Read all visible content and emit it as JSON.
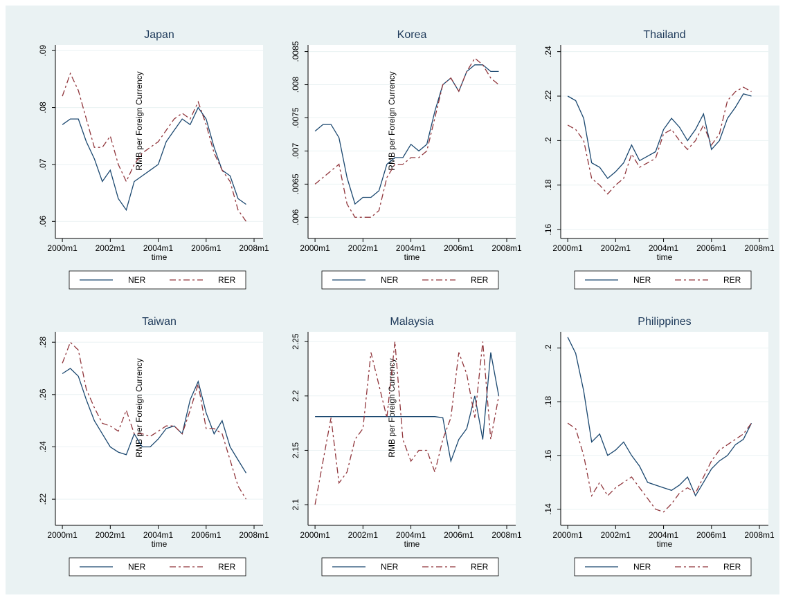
{
  "chart_data": [
    {
      "type": "line",
      "title": "Japan",
      "y_axis_label": "RMB per Foreign Currency",
      "x_axis_label": "time",
      "x": [
        480,
        484,
        488,
        492,
        496,
        500,
        504,
        508,
        512,
        516,
        520,
        524,
        528,
        532,
        536,
        540,
        544,
        548,
        552,
        556,
        560,
        564,
        568,
        572
      ],
      "xlim": [
        476.5,
        580.5
      ],
      "xticks": [
        {
          "value": 480,
          "label": "2000m1"
        },
        {
          "value": 504,
          "label": "2002m1"
        },
        {
          "value": 528,
          "label": "2004m1"
        },
        {
          "value": 552,
          "label": "2006m1"
        },
        {
          "value": 576,
          "label": "2008m1"
        }
      ],
      "ylim": [
        0.057,
        0.091
      ],
      "yticks": [
        {
          "value": 0.06,
          "label": ".06"
        },
        {
          "value": 0.07,
          "label": ".07"
        },
        {
          "value": 0.08,
          "label": ".08"
        },
        {
          "value": 0.09,
          "label": ".09"
        }
      ],
      "grid": true,
      "series": [
        {
          "name": "NER",
          "color": "#1a476f",
          "dash": false,
          "values": [
            0.077,
            0.078,
            0.078,
            0.074,
            0.071,
            0.067,
            0.069,
            0.064,
            0.062,
            0.067,
            0.068,
            0.069,
            0.07,
            0.074,
            0.076,
            0.078,
            0.077,
            0.08,
            0.078,
            0.073,
            0.069,
            0.068,
            0.064,
            0.063
          ]
        },
        {
          "name": "RER",
          "color": "#90353b",
          "dash": true,
          "values": [
            0.082,
            0.086,
            0.083,
            0.078,
            0.073,
            0.073,
            0.075,
            0.07,
            0.067,
            0.07,
            0.072,
            0.073,
            0.074,
            0.076,
            0.078,
            0.079,
            0.078,
            0.081,
            0.077,
            0.072,
            0.069,
            0.067,
            0.062,
            0.06
          ]
        }
      ]
    },
    {
      "type": "line",
      "title": "Korea",
      "y_axis_label": "RMB per Foreign Currency",
      "x_axis_label": "time",
      "x": [
        480,
        484,
        488,
        492,
        496,
        500,
        504,
        508,
        512,
        516,
        520,
        524,
        528,
        532,
        536,
        540,
        544,
        548,
        552,
        556,
        560,
        564,
        568,
        572
      ],
      "xlim": [
        476.5,
        580.5
      ],
      "xticks": [
        {
          "value": 480,
          "label": "2000m1"
        },
        {
          "value": 504,
          "label": "2002m1"
        },
        {
          "value": 528,
          "label": "2004m1"
        },
        {
          "value": 552,
          "label": "2006m1"
        },
        {
          "value": 576,
          "label": "2008m1"
        }
      ],
      "ylim": [
        0.00568,
        0.0086
      ],
      "yticks": [
        {
          "value": 0.006,
          "label": ".006"
        },
        {
          "value": 0.0065,
          "label": ".0065"
        },
        {
          "value": 0.007,
          "label": ".007"
        },
        {
          "value": 0.0075,
          "label": ".0075"
        },
        {
          "value": 0.008,
          "label": ".008"
        },
        {
          "value": 0.0085,
          "label": ".0085"
        }
      ],
      "grid": true,
      "series": [
        {
          "name": "NER",
          "color": "#1a476f",
          "dash": false,
          "values": [
            0.0073,
            0.0074,
            0.0074,
            0.0072,
            0.0066,
            0.0062,
            0.0063,
            0.0063,
            0.0064,
            0.0068,
            0.0069,
            0.0069,
            0.0071,
            0.007,
            0.0071,
            0.0076,
            0.008,
            0.0081,
            0.0079,
            0.0082,
            0.0083,
            0.0083,
            0.0082,
            0.0082
          ]
        },
        {
          "name": "RER",
          "color": "#90353b",
          "dash": true,
          "values": [
            0.0065,
            0.0066,
            0.0067,
            0.0068,
            0.0062,
            0.006,
            0.006,
            0.006,
            0.0061,
            0.0066,
            0.0068,
            0.0068,
            0.0069,
            0.0069,
            0.007,
            0.0075,
            0.008,
            0.0081,
            0.0079,
            0.0082,
            0.0084,
            0.0083,
            0.0081,
            0.008
          ]
        }
      ]
    },
    {
      "type": "line",
      "title": "Thailand",
      "x_axis_label": "time",
      "x": [
        480,
        484,
        488,
        492,
        496,
        500,
        504,
        508,
        512,
        516,
        520,
        524,
        528,
        532,
        536,
        540,
        544,
        548,
        552,
        556,
        560,
        564,
        568,
        572
      ],
      "xlim": [
        476.5,
        580.5
      ],
      "xticks": [
        {
          "value": 480,
          "label": "2000m1"
        },
        {
          "value": 504,
          "label": "2002m1"
        },
        {
          "value": 528,
          "label": "2004m1"
        },
        {
          "value": 552,
          "label": "2006m1"
        },
        {
          "value": 576,
          "label": "2008m1"
        }
      ],
      "ylim": [
        0.156,
        0.243
      ],
      "yticks": [
        {
          "value": 0.16,
          "label": ".16"
        },
        {
          "value": 0.18,
          "label": ".18"
        },
        {
          "value": 0.2,
          "label": ".2"
        },
        {
          "value": 0.22,
          "label": ".22"
        },
        {
          "value": 0.24,
          "label": ".24"
        }
      ],
      "grid": true,
      "series": [
        {
          "name": "NER",
          "color": "#1a476f",
          "dash": false,
          "values": [
            0.22,
            0.218,
            0.21,
            0.19,
            0.188,
            0.183,
            0.186,
            0.19,
            0.198,
            0.191,
            0.193,
            0.195,
            0.205,
            0.21,
            0.206,
            0.2,
            0.205,
            0.212,
            0.196,
            0.2,
            0.21,
            0.215,
            0.221,
            0.22
          ]
        },
        {
          "name": "RER",
          "color": "#90353b",
          "dash": true,
          "values": [
            0.207,
            0.205,
            0.2,
            0.183,
            0.18,
            0.176,
            0.18,
            0.183,
            0.194,
            0.188,
            0.19,
            0.192,
            0.203,
            0.205,
            0.2,
            0.196,
            0.2,
            0.207,
            0.198,
            0.203,
            0.218,
            0.222,
            0.224,
            0.222
          ]
        }
      ]
    },
    {
      "type": "line",
      "title": "Taiwan",
      "y_axis_label": "RMB per Foreign Currency",
      "x_axis_label": "time",
      "x": [
        480,
        484,
        488,
        492,
        496,
        500,
        504,
        508,
        512,
        516,
        520,
        524,
        528,
        532,
        536,
        540,
        544,
        548,
        552,
        556,
        560,
        564,
        568,
        572
      ],
      "xlim": [
        476.5,
        580.5
      ],
      "xticks": [
        {
          "value": 480,
          "label": "2000m1"
        },
        {
          "value": 504,
          "label": "2002m1"
        },
        {
          "value": 528,
          "label": "2004m1"
        },
        {
          "value": 552,
          "label": "2006m1"
        },
        {
          "value": 576,
          "label": "2008m1"
        }
      ],
      "ylim": [
        0.21,
        0.284
      ],
      "yticks": [
        {
          "value": 0.22,
          "label": ".22"
        },
        {
          "value": 0.24,
          "label": ".24"
        },
        {
          "value": 0.26,
          "label": ".26"
        },
        {
          "value": 0.28,
          "label": ".28"
        }
      ],
      "grid": true,
      "series": [
        {
          "name": "NER",
          "color": "#1a476f",
          "dash": false,
          "values": [
            0.268,
            0.27,
            0.267,
            0.258,
            0.25,
            0.245,
            0.24,
            0.238,
            0.237,
            0.245,
            0.24,
            0.24,
            0.243,
            0.247,
            0.248,
            0.245,
            0.258,
            0.265,
            0.253,
            0.245,
            0.25,
            0.24,
            0.235,
            0.23
          ]
        },
        {
          "name": "RER",
          "color": "#90353b",
          "dash": true,
          "values": [
            0.272,
            0.28,
            0.277,
            0.262,
            0.255,
            0.249,
            0.248,
            0.246,
            0.254,
            0.245,
            0.245,
            0.244,
            0.246,
            0.248,
            0.248,
            0.245,
            0.254,
            0.264,
            0.247,
            0.247,
            0.245,
            0.235,
            0.225,
            0.22
          ]
        }
      ]
    },
    {
      "type": "line",
      "title": "Malaysia",
      "y_axis_label": "RMB per Foreign Currency",
      "x_axis_label": "time",
      "x": [
        480,
        484,
        488,
        492,
        496,
        500,
        504,
        508,
        512,
        516,
        520,
        524,
        528,
        532,
        536,
        540,
        544,
        548,
        552,
        556,
        560,
        564,
        568,
        572
      ],
      "xlim": [
        476.5,
        580.5
      ],
      "xticks": [
        {
          "value": 480,
          "label": "2000m1"
        },
        {
          "value": 504,
          "label": "2002m1"
        },
        {
          "value": 528,
          "label": "2004m1"
        },
        {
          "value": 552,
          "label": "2006m1"
        },
        {
          "value": 576,
          "label": "2008m1"
        }
      ],
      "ylim": [
        2.081,
        2.259
      ],
      "yticks": [
        2.1,
        2.15,
        2.2,
        2.25
      ],
      "grid": true,
      "series": [
        {
          "name": "NER",
          "color": "#1a476f",
          "dash": false,
          "values": [
            2.181,
            2.181,
            2.181,
            2.181,
            2.181,
            2.181,
            2.181,
            2.181,
            2.181,
            2.181,
            2.181,
            2.181,
            2.181,
            2.181,
            2.181,
            2.181,
            2.18,
            2.14,
            2.16,
            2.17,
            2.2,
            2.16,
            2.24,
            2.2
          ]
        },
        {
          "name": "RER",
          "color": "#90353b",
          "dash": true,
          "values": [
            2.1,
            2.14,
            2.18,
            2.12,
            2.13,
            2.16,
            2.17,
            2.24,
            2.21,
            2.18,
            2.25,
            2.16,
            2.14,
            2.15,
            2.15,
            2.13,
            2.16,
            2.18,
            2.24,
            2.22,
            2.18,
            2.25,
            2.16,
            2.2
          ]
        }
      ]
    },
    {
      "type": "line",
      "title": "Philippines",
      "x_axis_label": "time",
      "x": [
        480,
        484,
        488,
        492,
        496,
        500,
        504,
        508,
        512,
        516,
        520,
        524,
        528,
        532,
        536,
        540,
        544,
        548,
        552,
        556,
        560,
        564,
        568,
        572
      ],
      "xlim": [
        476.5,
        580.5
      ],
      "xticks": [
        {
          "value": 480,
          "label": "2000m1"
        },
        {
          "value": 504,
          "label": "2002m1"
        },
        {
          "value": 528,
          "label": "2004m1"
        },
        {
          "value": 552,
          "label": "2006m1"
        },
        {
          "value": 576,
          "label": "2008m1"
        }
      ],
      "ylim": [
        0.134,
        0.206
      ],
      "yticks": [
        {
          "value": 0.14,
          "label": ".14"
        },
        {
          "value": 0.16,
          "label": ".16"
        },
        {
          "value": 0.18,
          "label": ".18"
        },
        {
          "value": 0.2,
          "label": ".2"
        }
      ],
      "grid": true,
      "series": [
        {
          "name": "NER",
          "color": "#1a476f",
          "dash": false,
          "values": [
            0.204,
            0.198,
            0.184,
            0.165,
            0.168,
            0.16,
            0.162,
            0.165,
            0.16,
            0.156,
            0.15,
            0.149,
            0.148,
            0.147,
            0.149,
            0.152,
            0.145,
            0.15,
            0.155,
            0.158,
            0.16,
            0.164,
            0.166,
            0.172
          ]
        },
        {
          "name": "RER",
          "color": "#90353b",
          "dash": true,
          "values": [
            0.172,
            0.17,
            0.16,
            0.145,
            0.15,
            0.145,
            0.148,
            0.15,
            0.152,
            0.148,
            0.144,
            0.14,
            0.139,
            0.142,
            0.146,
            0.148,
            0.146,
            0.152,
            0.158,
            0.162,
            0.164,
            0.166,
            0.168,
            0.172
          ]
        }
      ]
    }
  ]
}
